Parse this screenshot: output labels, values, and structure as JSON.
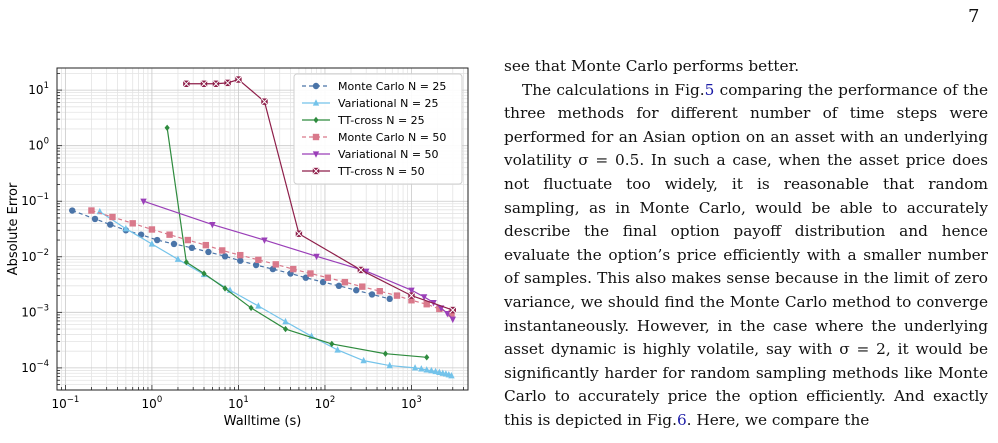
{
  "page": {
    "number": "7"
  },
  "chart_data": {
    "type": "line",
    "xscale": "log",
    "yscale": "log",
    "xlim": [
      0.08,
      4500
    ],
    "ylim": [
      4e-05,
      25
    ],
    "xlabel": "Walltime (s)",
    "ylabel": "Absolute Error",
    "grid": true,
    "legend_position": "top-right",
    "x_ticks": [
      0.1,
      1,
      10,
      100,
      1000
    ],
    "x_tick_labels": [
      {
        "base": "10",
        "exp": "−1"
      },
      {
        "base": "10",
        "exp": "0"
      },
      {
        "base": "10",
        "exp": "1"
      },
      {
        "base": "10",
        "exp": "2"
      },
      {
        "base": "10",
        "exp": "3"
      }
    ],
    "y_ticks": [
      0.0001,
      0.001,
      0.01,
      0.1,
      1,
      10
    ],
    "y_tick_labels": [
      {
        "base": "10",
        "exp": "−4"
      },
      {
        "base": "10",
        "exp": "−3"
      },
      {
        "base": "10",
        "exp": "−2"
      },
      {
        "base": "10",
        "exp": "−1"
      },
      {
        "base": "10",
        "exp": "0"
      },
      {
        "base": "10",
        "exp": "1"
      }
    ],
    "series": [
      {
        "name": "Monte Carlo N = 25",
        "color": "#4a74a8",
        "marker": "circle",
        "dash": "dashed",
        "x": [
          0.12,
          0.22,
          0.33,
          0.5,
          0.75,
          1.15,
          1.8,
          2.9,
          4.5,
          7,
          10.5,
          16,
          25,
          40,
          60,
          95,
          145,
          230,
          350,
          560
        ],
        "y": [
          0.068,
          0.048,
          0.038,
          0.03,
          0.025,
          0.02,
          0.017,
          0.0145,
          0.0122,
          0.0102,
          0.0085,
          0.0071,
          0.006,
          0.005,
          0.0042,
          0.0035,
          0.003,
          0.0025,
          0.0021,
          0.00175
        ]
      },
      {
        "name": "Variational N = 25",
        "color": "#74c3ea",
        "marker": "triangle-up",
        "dash": "solid",
        "x": [
          0.25,
          0.5,
          1,
          2,
          4,
          8,
          17,
          35,
          70,
          140,
          280,
          560,
          1100,
          1300,
          1500,
          1700,
          1900,
          2100,
          2300,
          2500,
          2700,
          2900
        ],
        "y": [
          0.065,
          0.032,
          0.017,
          0.009,
          0.0048,
          0.0025,
          0.0013,
          0.00068,
          0.00037,
          0.00021,
          0.000135,
          0.00011,
          0.0001,
          9.6e-05,
          9.2e-05,
          8.9e-05,
          8.6e-05,
          8.3e-05,
          8e-05,
          7.8e-05,
          7.5e-05,
          7.2e-05
        ]
      },
      {
        "name": "TT-cross N = 25",
        "color": "#2e8b3e",
        "marker": "diamond",
        "dash": "solid",
        "x": [
          1.5,
          2.5,
          4,
          7,
          14,
          35,
          120,
          500,
          1500
        ],
        "y": [
          2.1,
          0.008,
          0.005,
          0.0027,
          0.0012,
          0.0005,
          0.00027,
          0.00018,
          0.000155
        ]
      },
      {
        "name": "Monte Carlo N = 50",
        "color": "#d9798b",
        "marker": "square",
        "dash": "dashed",
        "x": [
          0.2,
          0.35,
          0.6,
          1,
          1.6,
          2.6,
          4.2,
          6.5,
          10.5,
          17,
          27,
          43,
          68,
          108,
          170,
          270,
          430,
          680,
          1000,
          1500,
          2100,
          2900
        ],
        "y": [
          0.068,
          0.052,
          0.04,
          0.031,
          0.025,
          0.02,
          0.0162,
          0.013,
          0.0107,
          0.0088,
          0.0073,
          0.006,
          0.005,
          0.0042,
          0.0035,
          0.0029,
          0.0024,
          0.002,
          0.00165,
          0.0014,
          0.00115,
          0.00095
        ]
      },
      {
        "name": "Variational N = 50",
        "color": "#9a3fb8",
        "marker": "triangle-down",
        "dash": "solid",
        "x": [
          0.8,
          5,
          20,
          80,
          300,
          1000,
          1400,
          1800,
          2200,
          2600,
          3000
        ],
        "y": [
          0.1,
          0.038,
          0.02,
          0.0102,
          0.0055,
          0.0025,
          0.0019,
          0.0015,
          0.0012,
          0.00095,
          0.00075
        ]
      },
      {
        "name": "TT-cross N = 50",
        "color": "#8e1f4a",
        "marker": "x-box",
        "dash": "solid",
        "x": [
          2.5,
          4,
          5.5,
          7.5,
          10,
          20,
          50,
          260,
          1000,
          3000
        ],
        "y": [
          13,
          13,
          13,
          13.5,
          15.5,
          6.2,
          0.026,
          0.0058,
          0.002,
          0.0011
        ]
      }
    ]
  },
  "text": {
    "p1": "see that Monte Carlo performs better.",
    "p2_a": "The calculations in Fig.",
    "p2_ref": "5",
    "p2_b": " comparing the performance of the three methods for different number of time steps were performed for an Asian option on an asset with an underlying volatility σ = 0.5. In such a case, when the asset price does not fluctuate too widely, it is reasonable that random sampling, as in Monte Carlo, would be able to accurately describe the final option payoff distribution and hence evaluate the option’s price efficiently with a smaller number of samples. This also makes sense because in the limit of zero variance, we should find the Monte Carlo method to converge instantaneously. However, in the case where the underlying asset dynamic is highly volatile, say with σ = 2, it would be significantly harder for random sampling methods like Monte Carlo to accurately price the option efficiently. And exactly this is depicted in Fig.",
    "p2_ref2": "6",
    "p2_c": ". Here, we compare the"
  }
}
